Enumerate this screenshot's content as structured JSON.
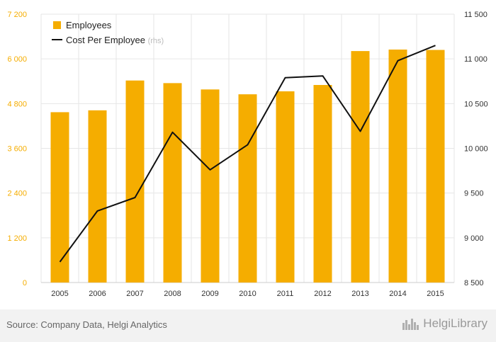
{
  "chart_data": {
    "type": "bar+line",
    "categories": [
      "2005",
      "2006",
      "2007",
      "2008",
      "2009",
      "2010",
      "2011",
      "2012",
      "2013",
      "2014",
      "2015"
    ],
    "series": [
      {
        "name": "Employees",
        "type": "bar",
        "axis": "left",
        "values": [
          4570,
          4620,
          5420,
          5350,
          5180,
          5050,
          5130,
          5300,
          6210,
          6250,
          6240
        ]
      },
      {
        "name": "Cost Per Employee",
        "name_suffix": "(rhs)",
        "type": "line",
        "axis": "right",
        "values": [
          8730,
          9300,
          9450,
          10180,
          9760,
          10040,
          10790,
          10810,
          10190,
          10980,
          11150
        ]
      }
    ],
    "left_axis": {
      "ylim": [
        0,
        7200
      ],
      "ticks": [
        0,
        1200,
        2400,
        3600,
        4800,
        6000,
        7200
      ],
      "tick_labels": [
        "0",
        "1 200",
        "2 400",
        "3 600",
        "4 800",
        "6 000",
        "7 200"
      ]
    },
    "right_axis": {
      "ylim": [
        8500,
        11500
      ],
      "ticks": [
        8500,
        9000,
        9500,
        10000,
        10500,
        11000,
        11500
      ],
      "tick_labels": [
        "8 500",
        "9 000",
        "9 500",
        "10 000",
        "10 500",
        "11 000",
        "11 500"
      ]
    },
    "grid": true,
    "legend_position": "top-left",
    "colors": {
      "bar": "#f5ad00",
      "line": "#111111",
      "left_ticks": "#f5ad00",
      "right_ticks": "#333333",
      "grid": "#e6e6e6"
    }
  },
  "footer": {
    "source": "Source: Company Data, Helgi Analytics",
    "brand": "HelgiLibrary",
    "brand_icon": "city-skyline-icon"
  }
}
